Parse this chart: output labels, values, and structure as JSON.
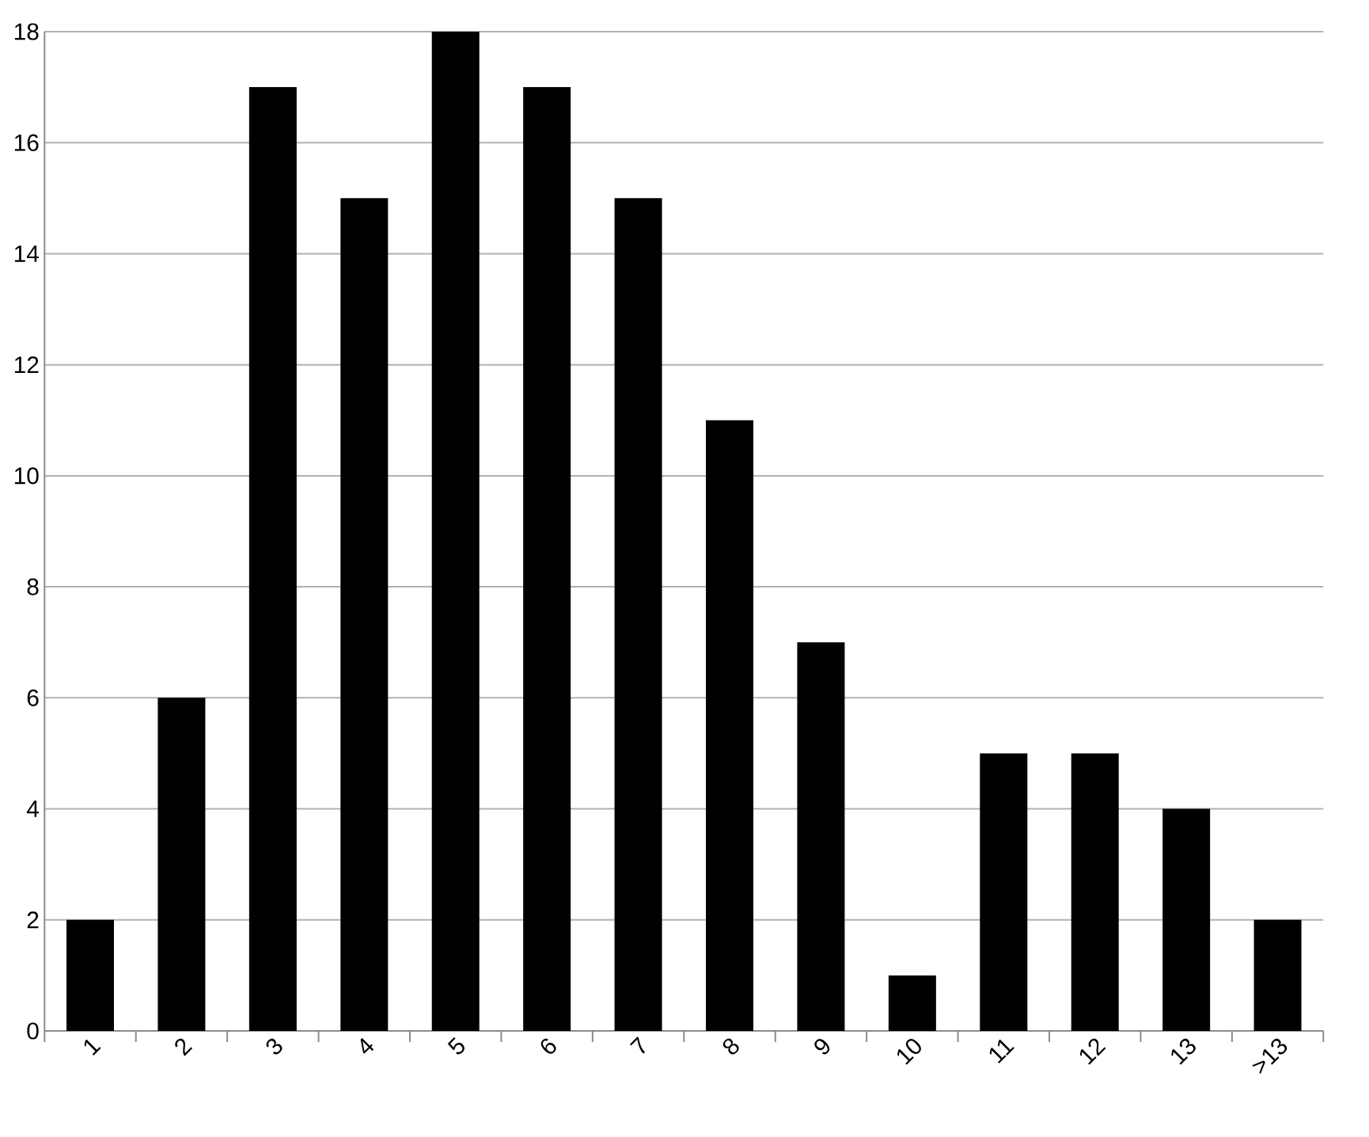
{
  "chart_data": {
    "type": "bar",
    "categories": [
      "1",
      "2",
      "3",
      "4",
      "5",
      "6",
      "7",
      "8",
      "9",
      "10",
      "11",
      "12",
      "13",
      ">13"
    ],
    "values": [
      2,
      6,
      17,
      15,
      18,
      17,
      15,
      11,
      7,
      1,
      5,
      5,
      4,
      2
    ],
    "color": "#000000",
    "ylim": [
      0,
      18
    ],
    "yticks": [
      0,
      2,
      4,
      6,
      8,
      10,
      12,
      14,
      16,
      18
    ],
    "grid": "y"
  }
}
